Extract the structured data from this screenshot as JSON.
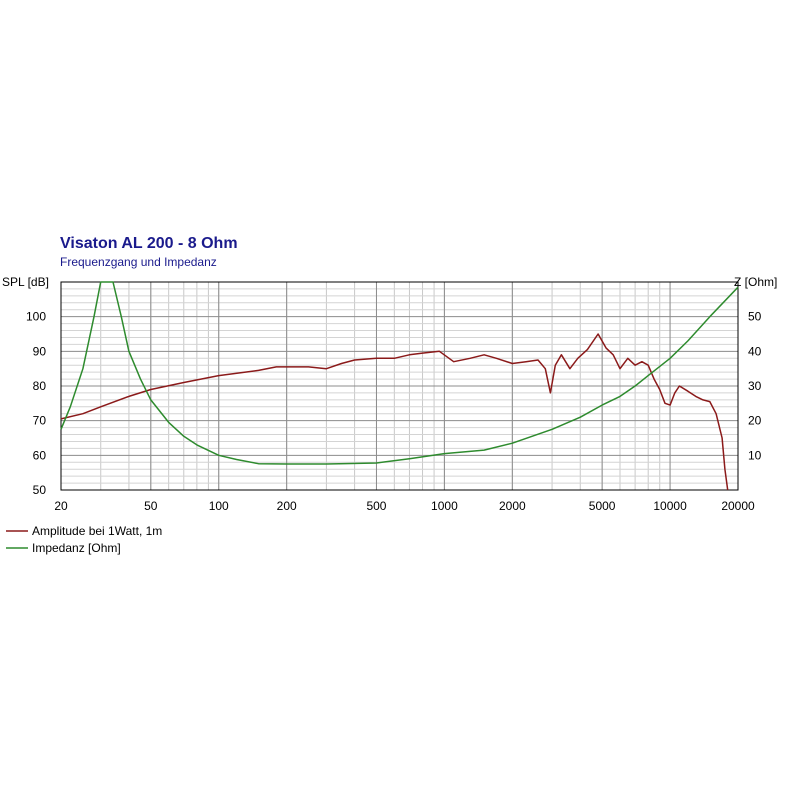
{
  "chart_data": {
    "type": "line",
    "title": "Visaton AL 200 - 8 Ohm",
    "subtitle": "Frequenzgang und Impedanz",
    "xscale": "log",
    "xlim": [
      20,
      20000
    ],
    "ylim_left": [
      50,
      110
    ],
    "ylim_right": [
      0,
      60
    ],
    "ylabel_left": "SPL [dB]",
    "ylabel_right": "Z [Ohm]",
    "x_ticks": [
      "20",
      "50",
      "100",
      "200",
      "500",
      "1000",
      "2000",
      "5000",
      "10000",
      "20000"
    ],
    "y_ticks_left": [
      "50",
      "60",
      "70",
      "80",
      "90",
      "100"
    ],
    "y_ticks_right": [
      "10",
      "20",
      "30",
      "40",
      "50"
    ],
    "grid": true,
    "colors": {
      "amplitude": "#8b1a1a",
      "impedance": "#2e8b2e",
      "title": "#1a1a8c"
    },
    "series": [
      {
        "name": "Amplitude bei 1Watt, 1m",
        "axis": "left",
        "points": [
          [
            20,
            70.5
          ],
          [
            25,
            72
          ],
          [
            30,
            74
          ],
          [
            40,
            77
          ],
          [
            50,
            79
          ],
          [
            70,
            81
          ],
          [
            100,
            83
          ],
          [
            150,
            84.5
          ],
          [
            180,
            85.5
          ],
          [
            250,
            85.5
          ],
          [
            300,
            85
          ],
          [
            350,
            86.5
          ],
          [
            400,
            87.5
          ],
          [
            500,
            88
          ],
          [
            600,
            88
          ],
          [
            700,
            89
          ],
          [
            800,
            89.5
          ],
          [
            950,
            90
          ],
          [
            1100,
            87
          ],
          [
            1300,
            88
          ],
          [
            1500,
            89
          ],
          [
            1700,
            88
          ],
          [
            2000,
            86.5
          ],
          [
            2300,
            87
          ],
          [
            2600,
            87.5
          ],
          [
            2800,
            85
          ],
          [
            2950,
            78
          ],
          [
            3100,
            86
          ],
          [
            3300,
            89
          ],
          [
            3600,
            85
          ],
          [
            3900,
            88
          ],
          [
            4300,
            90.5
          ],
          [
            4800,
            95
          ],
          [
            5200,
            91
          ],
          [
            5600,
            89
          ],
          [
            6000,
            85
          ],
          [
            6500,
            88
          ],
          [
            7000,
            86
          ],
          [
            7500,
            87
          ],
          [
            8000,
            86
          ],
          [
            8500,
            82
          ],
          [
            9000,
            79
          ],
          [
            9500,
            75
          ],
          [
            10000,
            74.5
          ],
          [
            10500,
            78
          ],
          [
            11000,
            80
          ],
          [
            12000,
            78.5
          ],
          [
            13000,
            77
          ],
          [
            14000,
            76
          ],
          [
            15000,
            75.5
          ],
          [
            16000,
            72
          ],
          [
            17000,
            65
          ],
          [
            17500,
            56
          ],
          [
            18000,
            50
          ]
        ]
      },
      {
        "name": "Impedanz [Ohm]",
        "axis": "right",
        "points": [
          [
            20,
            17.5
          ],
          [
            22,
            24
          ],
          [
            25,
            35
          ],
          [
            28,
            50
          ],
          [
            30,
            60
          ],
          [
            34,
            60
          ],
          [
            37,
            50
          ],
          [
            40,
            40
          ],
          [
            45,
            32
          ],
          [
            50,
            26
          ],
          [
            60,
            19.5
          ],
          [
            70,
            15.5
          ],
          [
            80,
            13
          ],
          [
            100,
            10
          ],
          [
            120,
            8.8
          ],
          [
            150,
            7.6
          ],
          [
            200,
            7.5
          ],
          [
            300,
            7.5
          ],
          [
            500,
            7.8
          ],
          [
            700,
            9
          ],
          [
            1000,
            10.5
          ],
          [
            1500,
            11.5
          ],
          [
            2000,
            13.5
          ],
          [
            3000,
            17.5
          ],
          [
            4000,
            21
          ],
          [
            5000,
            24.5
          ],
          [
            6000,
            27
          ],
          [
            7000,
            30
          ],
          [
            8000,
            33
          ],
          [
            10000,
            38
          ],
          [
            12000,
            43
          ],
          [
            15000,
            50
          ],
          [
            20000,
            58.5
          ]
        ]
      }
    ]
  }
}
